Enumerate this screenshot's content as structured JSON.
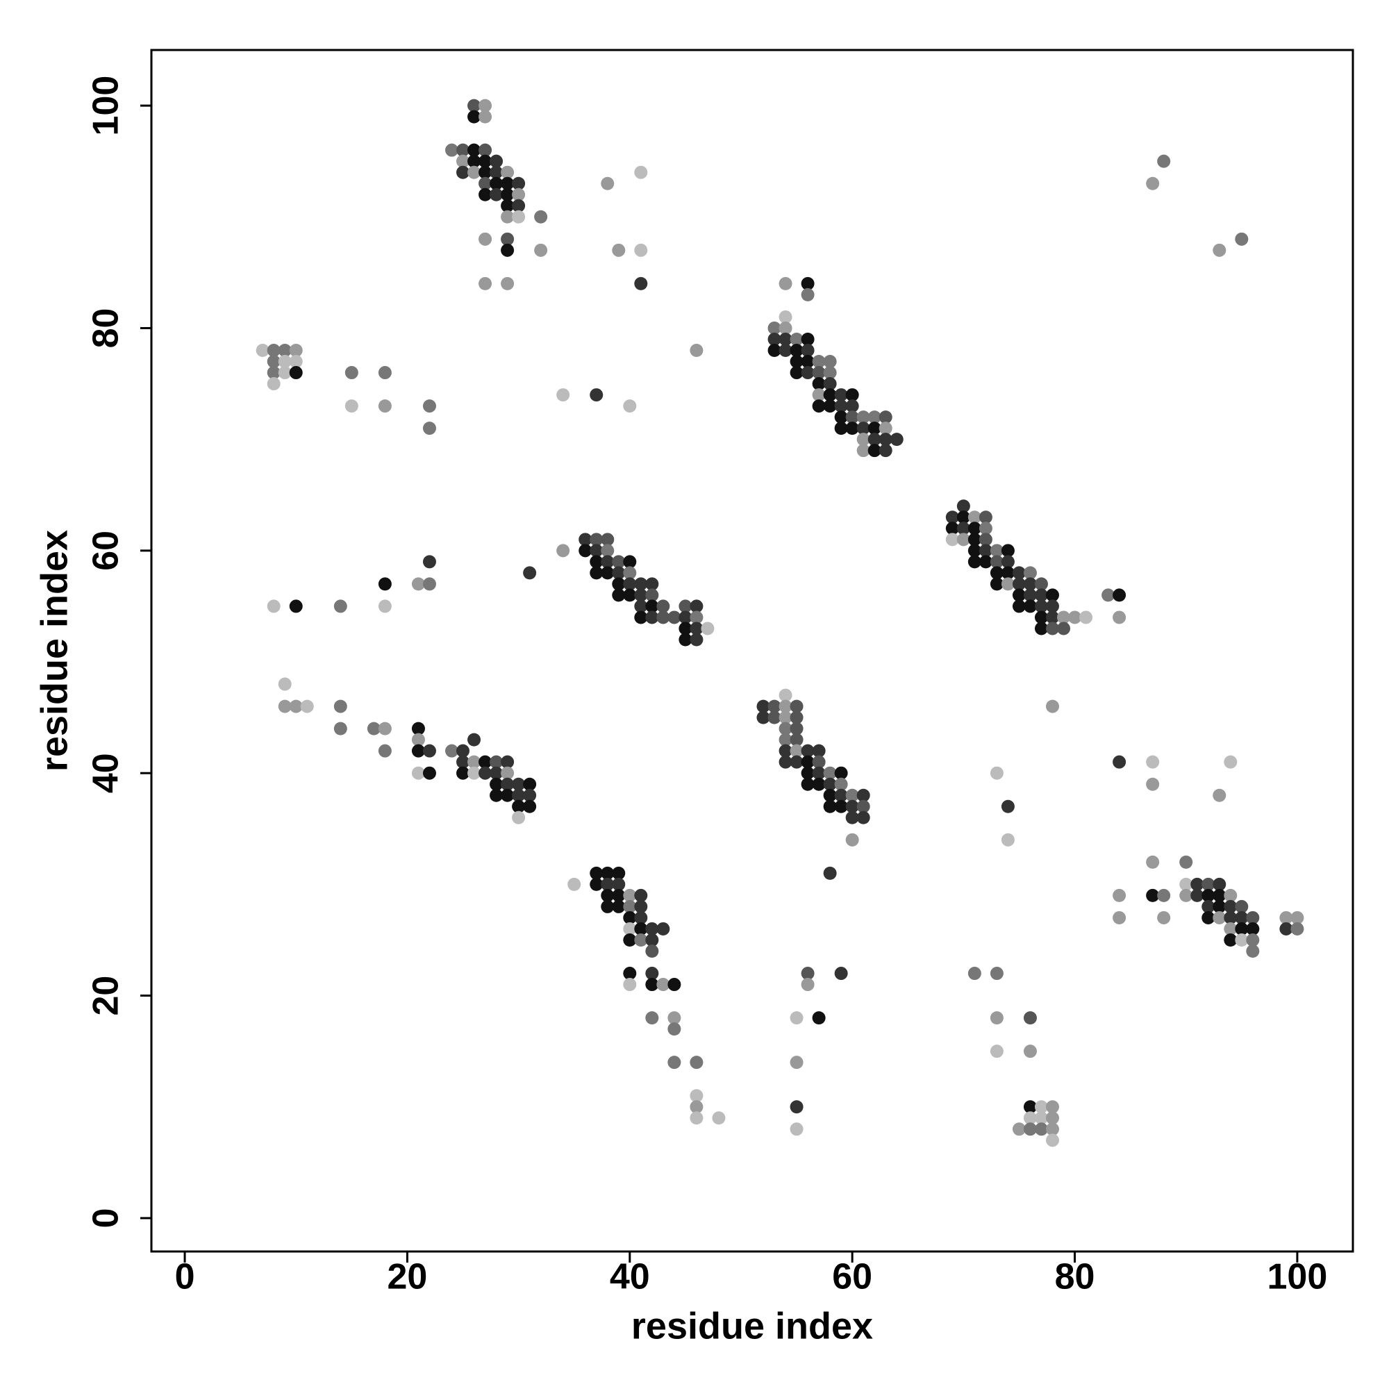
{
  "chart_data": {
    "type": "scatter",
    "x_label": "residue index",
    "y_label": "residue index",
    "xlim": [
      -3,
      105
    ],
    "ylim": [
      -3,
      105
    ],
    "xticks": [
      0,
      20,
      40,
      60,
      80,
      100
    ],
    "yticks": [
      0,
      20,
      40,
      60,
      80,
      100
    ],
    "grid": false,
    "x": [
      26,
      27,
      26,
      27,
      24,
      25,
      26,
      27,
      25,
      26,
      27,
      28,
      25,
      26,
      27,
      28,
      29,
      27,
      28,
      29,
      30,
      27,
      28,
      29,
      30,
      29,
      30,
      29,
      30,
      32,
      27,
      29,
      29,
      32,
      27,
      29,
      38,
      41,
      39,
      41,
      41,
      87,
      88,
      93,
      95,
      7,
      8,
      9,
      10,
      8,
      9,
      10,
      8,
      9,
      10,
      8,
      15,
      18,
      15,
      18,
      22,
      22,
      34,
      37,
      40,
      46,
      54,
      56,
      56,
      54,
      53,
      54,
      53,
      54,
      55,
      56,
      53,
      54,
      55,
      56,
      55,
      56,
      57,
      58,
      55,
      56,
      57,
      58,
      57,
      58,
      57,
      58,
      59,
      60,
      57,
      58,
      59,
      60,
      59,
      60,
      61,
      62,
      63,
      59,
      60,
      61,
      62,
      63,
      61,
      62,
      63,
      64,
      61,
      62,
      63,
      34,
      36,
      37,
      38,
      36,
      37,
      38,
      37,
      38,
      39,
      40,
      37,
      38,
      39,
      40,
      39,
      40,
      41,
      42,
      39,
      40,
      41,
      42,
      41,
      42,
      43,
      45,
      46,
      41,
      42,
      43,
      44,
      45,
      46,
      45,
      46,
      47,
      45,
      46,
      31,
      22,
      21,
      22,
      18,
      18,
      8,
      10,
      14,
      70,
      69,
      70,
      71,
      72,
      69,
      70,
      71,
      72,
      69,
      70,
      71,
      72,
      71,
      72,
      73,
      74,
      71,
      72,
      73,
      74,
      73,
      74,
      75,
      76,
      73,
      74,
      75,
      76,
      77,
      75,
      76,
      77,
      78,
      75,
      76,
      77,
      78,
      77,
      78,
      79,
      80,
      81,
      77,
      78,
      79,
      83,
      84,
      84,
      9,
      9,
      10,
      11,
      14,
      14,
      17,
      18,
      18,
      21,
      21,
      21,
      22,
      21,
      22,
      24,
      25,
      26,
      25,
      26,
      27,
      28,
      29,
      25,
      26,
      27,
      28,
      29,
      28,
      29,
      30,
      31,
      28,
      29,
      30,
      31,
      30,
      31,
      30,
      54,
      52,
      53,
      54,
      55,
      52,
      53,
      54,
      55,
      54,
      55,
      54,
      55,
      54,
      55,
      56,
      57,
      54,
      55,
      56,
      57,
      56,
      57,
      58,
      59,
      56,
      57,
      58,
      59,
      58,
      59,
      60,
      61,
      58,
      59,
      60,
      61,
      60,
      61,
      60,
      78,
      73,
      74,
      74,
      84,
      87,
      87,
      94,
      93,
      87,
      90,
      84,
      84,
      87,
      88,
      88,
      90,
      91,
      92,
      93,
      90,
      91,
      92,
      93,
      94,
      92,
      93,
      94,
      95,
      92,
      93,
      94,
      95,
      96,
      94,
      95,
      96,
      94,
      95,
      96,
      96,
      99,
      100,
      99,
      100,
      35,
      37,
      38,
      39,
      37,
      38,
      39,
      38,
      39,
      40,
      41,
      38,
      39,
      40,
      41,
      40,
      41,
      40,
      41,
      42,
      43,
      40,
      41,
      42,
      42,
      40,
      42,
      40,
      42,
      43,
      44,
      42,
      44,
      44,
      44,
      46,
      46,
      46,
      46,
      48,
      55,
      57,
      56,
      59,
      56,
      55,
      55,
      55,
      58,
      71,
      73,
      73,
      76,
      73,
      76,
      76,
      77,
      78,
      76,
      77,
      78,
      75,
      76,
      77,
      78,
      78
    ],
    "y": [
      100,
      100,
      99,
      99,
      96,
      96,
      96,
      96,
      95,
      95,
      95,
      95,
      94,
      94,
      94,
      94,
      94,
      93,
      93,
      93,
      93,
      92,
      92,
      92,
      92,
      91,
      91,
      90,
      90,
      90,
      88,
      88,
      87,
      87,
      84,
      84,
      93,
      94,
      87,
      87,
      84,
      93,
      95,
      87,
      88,
      78,
      78,
      78,
      78,
      77,
      77,
      77,
      76,
      76,
      76,
      75,
      76,
      76,
      73,
      73,
      73,
      71,
      74,
      74,
      73,
      78,
      84,
      84,
      83,
      81,
      80,
      80,
      79,
      79,
      79,
      79,
      78,
      78,
      78,
      78,
      77,
      77,
      77,
      77,
      76,
      76,
      76,
      76,
      75,
      75,
      74,
      74,
      74,
      74,
      73,
      73,
      73,
      73,
      72,
      72,
      72,
      72,
      72,
      71,
      71,
      71,
      71,
      71,
      70,
      70,
      70,
      70,
      69,
      69,
      69,
      60,
      61,
      61,
      61,
      60,
      60,
      60,
      59,
      59,
      59,
      59,
      58,
      58,
      58,
      58,
      57,
      57,
      57,
      57,
      56,
      56,
      56,
      56,
      55,
      55,
      55,
      55,
      55,
      54,
      54,
      54,
      54,
      54,
      54,
      53,
      53,
      53,
      52,
      52,
      58,
      59,
      57,
      57,
      57,
      55,
      55,
      55,
      55,
      64,
      63,
      63,
      63,
      63,
      62,
      62,
      62,
      62,
      61,
      61,
      61,
      61,
      60,
      60,
      60,
      60,
      59,
      59,
      59,
      59,
      58,
      58,
      58,
      58,
      57,
      57,
      57,
      57,
      57,
      56,
      56,
      56,
      56,
      55,
      55,
      55,
      55,
      54,
      54,
      54,
      54,
      54,
      53,
      53,
      53,
      56,
      56,
      54,
      48,
      46,
      46,
      46,
      46,
      44,
      44,
      44,
      42,
      44,
      43,
      42,
      42,
      40,
      40,
      42,
      42,
      43,
      41,
      41,
      41,
      41,
      41,
      40,
      40,
      40,
      40,
      40,
      39,
      39,
      39,
      39,
      38,
      38,
      38,
      38,
      37,
      37,
      36,
      47,
      46,
      46,
      46,
      46,
      45,
      45,
      45,
      45,
      44,
      44,
      43,
      43,
      42,
      42,
      42,
      42,
      41,
      41,
      41,
      41,
      40,
      40,
      40,
      40,
      39,
      39,
      39,
      39,
      38,
      38,
      38,
      38,
      37,
      37,
      37,
      37,
      36,
      36,
      34,
      46,
      40,
      37,
      34,
      41,
      41,
      39,
      41,
      38,
      32,
      32,
      29,
      27,
      29,
      29,
      27,
      30,
      30,
      30,
      30,
      29,
      29,
      29,
      29,
      29,
      28,
      28,
      28,
      28,
      27,
      27,
      27,
      27,
      27,
      26,
      26,
      26,
      25,
      25,
      25,
      24,
      27,
      27,
      26,
      26,
      30,
      31,
      31,
      31,
      30,
      30,
      30,
      29,
      29,
      29,
      29,
      28,
      28,
      28,
      28,
      27,
      27,
      26,
      26,
      26,
      26,
      25,
      25,
      25,
      24,
      22,
      22,
      21,
      21,
      21,
      21,
      18,
      18,
      17,
      14,
      14,
      11,
      10,
      9,
      9,
      18,
      18,
      22,
      22,
      21,
      14,
      10,
      8,
      31,
      22,
      22,
      18,
      18,
      15,
      15,
      10,
      10,
      10,
      9,
      9,
      9,
      8,
      8,
      8,
      8,
      7
    ],
    "colors": [
      "#555",
      "#999",
      "#111",
      "#999",
      "#777",
      "#555",
      "#111",
      "#555",
      "#999",
      "#111",
      "#111",
      "#333",
      "#333",
      "#999",
      "#111",
      "#333",
      "#999",
      "#555",
      "#111",
      "#111",
      "#333",
      "#111",
      "#333",
      "#111",
      "#999",
      "#111",
      "#333",
      "#999",
      "#bbb",
      "#777",
      "#999",
      "#555",
      "#111",
      "#999",
      "#999",
      "#999",
      "#999",
      "#bbb",
      "#999",
      "#bbb",
      "#333",
      "#999",
      "#777",
      "#999",
      "#777",
      "#bbb",
      "#777",
      "#777",
      "#999",
      "#777",
      "#bbb",
      "#bbb",
      "#777",
      "#bbb",
      "#111",
      "#bbb",
      "#777",
      "#777",
      "#bbb",
      "#999",
      "#777",
      "#777",
      "#bbb",
      "#333",
      "#bbb",
      "#999",
      "#999",
      "#111",
      "#777",
      "#bbb",
      "#777",
      "#999",
      "#333",
      "#333",
      "#777",
      "#111",
      "#111",
      "#333",
      "#111",
      "#333",
      "#111",
      "#111",
      "#777",
      "#777",
      "#111",
      "#333",
      "#555",
      "#777",
      "#111",
      "#333",
      "#999",
      "#111",
      "#333",
      "#111",
      "#111",
      "#111",
      "#333",
      "#333",
      "#111",
      "#555",
      "#777",
      "#777",
      "#555",
      "#111",
      "#111",
      "#333",
      "#111",
      "#999",
      "#999",
      "#333",
      "#333",
      "#333",
      "#999",
      "#111",
      "#333",
      "#999",
      "#333",
      "#555",
      "#555",
      "#111",
      "#333",
      "#777",
      "#111",
      "#333",
      "#555",
      "#111",
      "#111",
      "#111",
      "#333",
      "#777",
      "#111",
      "#333",
      "#333",
      "#333",
      "#111",
      "#111",
      "#333",
      "#555",
      "#333",
      "#111",
      "#555",
      "#555",
      "#333",
      "#111",
      "#333",
      "#555",
      "#555",
      "#333",
      "#777",
      "#111",
      "#333",
      "#bbb",
      "#111",
      "#333",
      "#333",
      "#333",
      "#999",
      "#777",
      "#111",
      "#bbb",
      "#bbb",
      "#111",
      "#777",
      "#333",
      "#333",
      "#111",
      "#999",
      "#555",
      "#111",
      "#333",
      "#111",
      "#777",
      "#bbb",
      "#999",
      "#111",
      "#555",
      "#111",
      "#333",
      "#777",
      "#111",
      "#111",
      "#111",
      "#555",
      "#333",
      "#111",
      "#111",
      "#333",
      "#777",
      "#111",
      "#999",
      "#333",
      "#333",
      "#555",
      "#111",
      "#333",
      "#333",
      "#111",
      "#111",
      "#111",
      "#333",
      "#333",
      "#111",
      "#333",
      "#999",
      "#999",
      "#bbb",
      "#111",
      "#555",
      "#555",
      "#777",
      "#111",
      "#999",
      "#bbb",
      "#999",
      "#999",
      "#bbb",
      "#777",
      "#777",
      "#777",
      "#999",
      "#777",
      "#111",
      "#999",
      "#111",
      "#333",
      "#bbb",
      "#111",
      "#777",
      "#333",
      "#333",
      "#333",
      "#999",
      "#111",
      "#555",
      "#333",
      "#111",
      "#bbb",
      "#333",
      "#333",
      "#999",
      "#111",
      "#333",
      "#333",
      "#111",
      "#111",
      "#111",
      "#333",
      "#333",
      "#111",
      "#111",
      "#bbb",
      "#bbb",
      "#333",
      "#555",
      "#999",
      "#555",
      "#333",
      "#555",
      "#999",
      "#555",
      "#777",
      "#555",
      "#777",
      "#555",
      "#333",
      "#999",
      "#333",
      "#333",
      "#333",
      "#333",
      "#111",
      "#555",
      "#111",
      "#333",
      "#777",
      "#111",
      "#111",
      "#111",
      "#333",
      "#777",
      "#111",
      "#333",
      "#777",
      "#333",
      "#111",
      "#111",
      "#333",
      "#555",
      "#333",
      "#333",
      "#999",
      "#999",
      "#bbb",
      "#333",
      "#bbb",
      "#333",
      "#bbb",
      "#999",
      "#bbb",
      "#999",
      "#999",
      "#777",
      "#999",
      "#999",
      "#111",
      "#777",
      "#999",
      "#bbb",
      "#333",
      "#555",
      "#333",
      "#999",
      "#333",
      "#111",
      "#111",
      "#999",
      "#333",
      "#111",
      "#333",
      "#555",
      "#111",
      "#999",
      "#333",
      "#333",
      "#555",
      "#999",
      "#111",
      "#111",
      "#111",
      "#bbb",
      "#777",
      "#777",
      "#999",
      "#999",
      "#333",
      "#777",
      "#bbb",
      "#111",
      "#111",
      "#111",
      "#111",
      "#333",
      "#333",
      "#111",
      "#111",
      "#999",
      "#333",
      "#111",
      "#111",
      "#777",
      "#333",
      "#111",
      "#333",
      "#bbb",
      "#111",
      "#333",
      "#333",
      "#111",
      "#777",
      "#333",
      "#555",
      "#111",
      "#333",
      "#bbb",
      "#111",
      "#999",
      "#111",
      "#777",
      "#999",
      "#777",
      "#777",
      "#777",
      "#bbb",
      "#999",
      "#bbb",
      "#bbb",
      "#bbb",
      "#111",
      "#555",
      "#333",
      "#999",
      "#999",
      "#333",
      "#bbb",
      "#333",
      "#777",
      "#777",
      "#999",
      "#555",
      "#bbb",
      "#999",
      "#111",
      "#bbb",
      "#999",
      "#bbb",
      "#bbb",
      "#999",
      "#999",
      "#777",
      "#777",
      "#999",
      "#bbb"
    ]
  }
}
